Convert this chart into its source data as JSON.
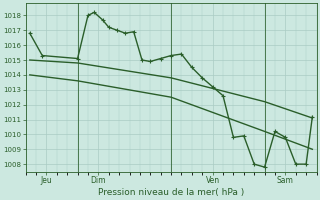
{
  "bg_color": "#cce8e0",
  "grid_color": "#aaccc4",
  "line_color": "#2a5e2a",
  "line_width": 1.0,
  "marker": "+",
  "marker_size": 3,
  "marker_lw": 0.8,
  "xlabel_text": "Pression niveau de la mer( hPa )",
  "xlabel_fontsize": 6.5,
  "ylim": [
    1007.5,
    1018.8
  ],
  "yticks": [
    1008,
    1009,
    1010,
    1011,
    1012,
    1013,
    1014,
    1015,
    1016,
    1017,
    1018
  ],
  "xlim": [
    0,
    14
  ],
  "xtick_positions": [
    1,
    3.5,
    9,
    12.5
  ],
  "xtick_labels": [
    "Jeu",
    "Dim",
    "Ven",
    "Sam"
  ],
  "vlines": [
    2.5,
    7.0,
    11.5
  ],
  "series1_x": [
    0.2,
    0.8,
    2.5,
    3.0,
    3.3,
    3.7,
    4.0,
    4.4,
    4.8,
    5.2,
    5.6,
    6.0,
    6.5,
    7.0,
    7.5,
    8.0,
    8.5,
    9.0,
    9.5,
    10.0,
    10.5,
    11.0,
    11.5,
    12.0,
    12.5,
    13.0,
    13.5,
    13.8
  ],
  "series1_y": [
    1016.8,
    1015.3,
    1015.1,
    1018.0,
    1018.2,
    1017.7,
    1017.2,
    1017.0,
    1016.8,
    1016.9,
    1015.0,
    1014.9,
    1015.1,
    1015.3,
    1015.4,
    1014.5,
    1013.8,
    1013.2,
    1012.6,
    1009.8,
    1009.9,
    1008.0,
    1007.8,
    1010.2,
    1009.8,
    1008.0,
    1008.0,
    1011.2
  ],
  "series2_x": [
    0.2,
    2.5,
    7.0,
    11.5,
    13.8
  ],
  "series2_y": [
    1015.0,
    1014.8,
    1013.8,
    1012.2,
    1011.1
  ],
  "series3_x": [
    0.2,
    2.5,
    7.0,
    11.5,
    13.8
  ],
  "series3_y": [
    1014.0,
    1013.6,
    1012.5,
    1010.2,
    1009.0
  ]
}
